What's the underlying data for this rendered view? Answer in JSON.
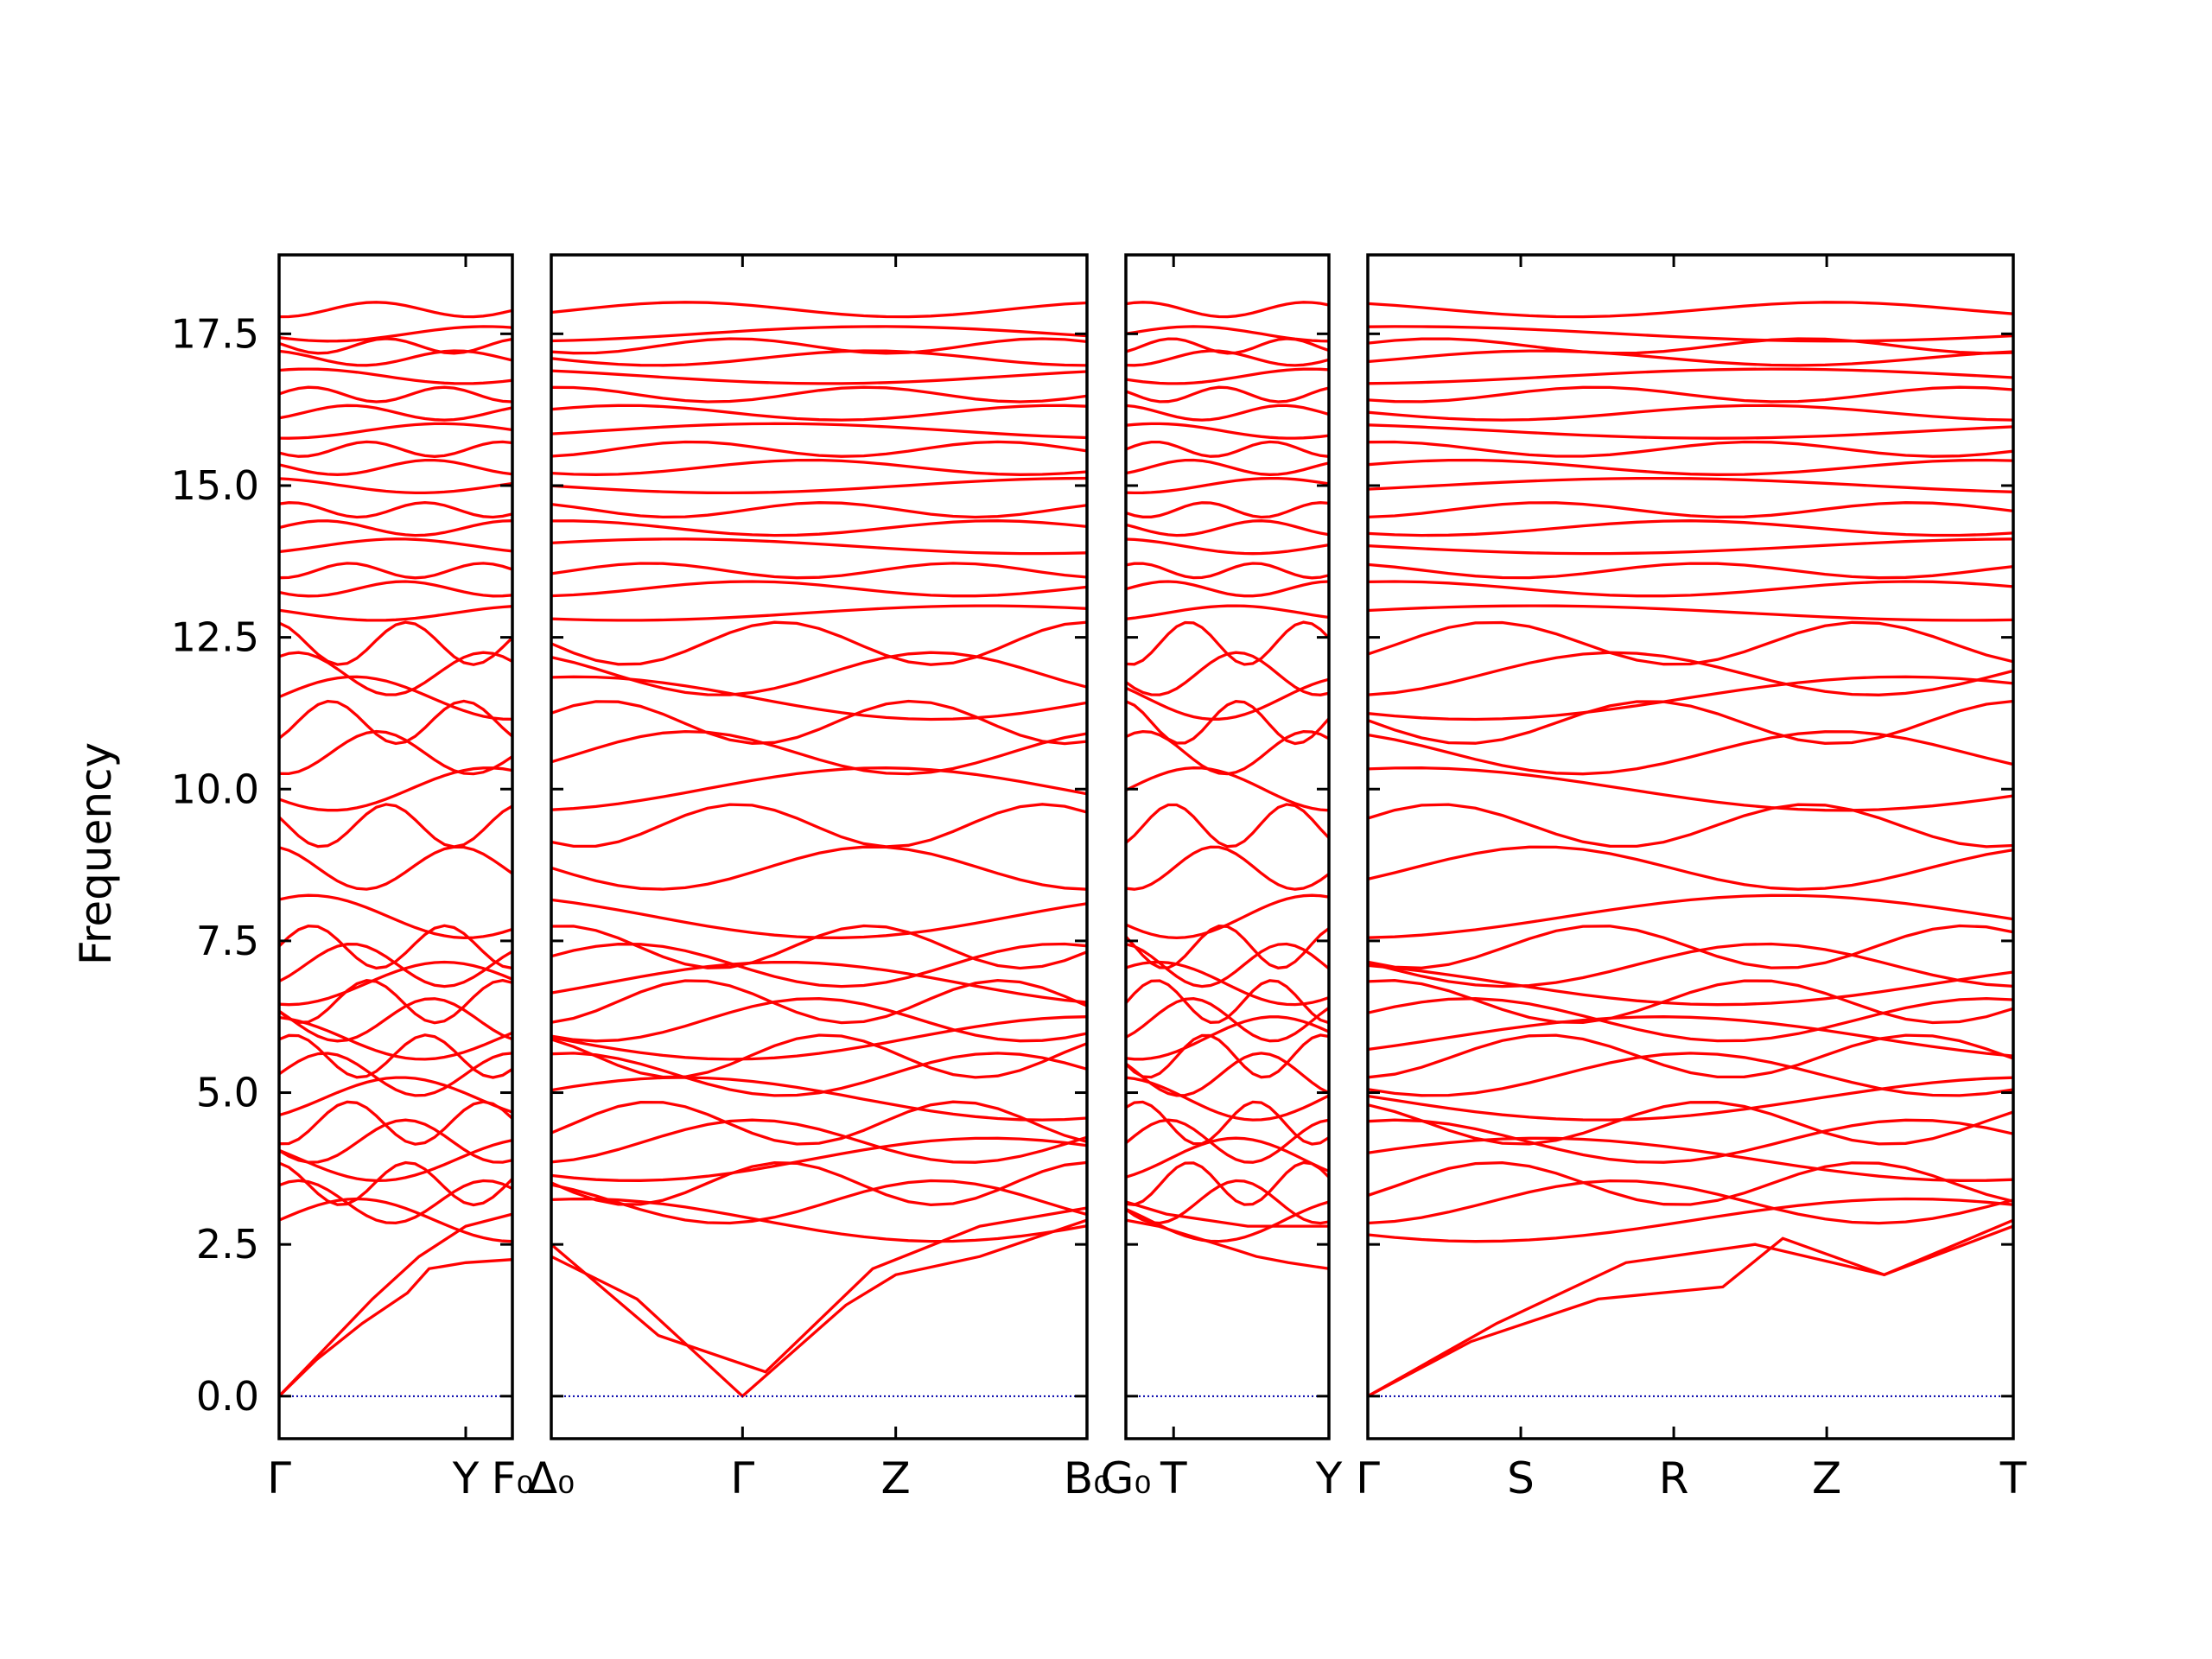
{
  "chart_data": {
    "type": "line",
    "title": "",
    "xlabel": "",
    "ylabel": "Frequency",
    "ylim": [
      -0.7,
      18.8
    ],
    "yticks": [
      0.0,
      2.5,
      5.0,
      7.5,
      10.0,
      12.5,
      15.0,
      17.5
    ],
    "ytick_labels": [
      "0.0",
      "2.5",
      "5.0",
      "7.5",
      "10.0",
      "12.5",
      "15.0",
      "17.5"
    ],
    "grid": false,
    "legend": "none",
    "line_color": "#ff0000",
    "zero_line_color": "#0000aa",
    "frame_color": "#000000",
    "panels": [
      {
        "ticks": [
          {
            "pos": 0.0,
            "label": "Γ"
          },
          {
            "pos": 0.8,
            "label": "Y"
          },
          {
            "pos": 1.0,
            "label": "F₀"
          }
        ]
      },
      {
        "ticks": [
          {
            "pos": 0.0,
            "label": "Δ₀"
          },
          {
            "pos": 0.357,
            "label": "Γ"
          },
          {
            "pos": 0.643,
            "label": "Z"
          },
          {
            "pos": 1.0,
            "label": "B₀"
          }
        ]
      },
      {
        "ticks": [
          {
            "pos": 0.0,
            "label": "G₀"
          },
          {
            "pos": 0.235,
            "label": "T"
          },
          {
            "pos": 1.0,
            "label": "Y"
          }
        ]
      },
      {
        "ticks": [
          {
            "pos": 0.0,
            "label": "Γ"
          },
          {
            "pos": 0.237,
            "label": "S"
          },
          {
            "pos": 0.474,
            "label": "R"
          },
          {
            "pos": 0.711,
            "label": "Z"
          },
          {
            "pos": 1.0,
            "label": "T"
          }
        ]
      }
    ],
    "series": [
      {
        "name": "",
        "x": [
          0.0,
          0.16,
          0.357,
          0.55,
          0.643,
          0.8,
          1.0
        ],
        "y_by_panel": [
          [
            0.0,
            0.6,
            1.2,
            1.7,
            2.1,
            2.2,
            2.25
          ],
          [
            2.3,
            1.6,
            0.0,
            1.5,
            2.0,
            2.3,
            2.9
          ],
          [
            2.9,
            2.8,
            2.6,
            2.4,
            2.3,
            2.2,
            2.1
          ],
          [
            0.0,
            0.9,
            1.6,
            1.8,
            2.6,
            2.0,
            2.9
          ]
        ]
      },
      {
        "name": "",
        "x": [
          0.0,
          0.2,
          0.4,
          0.6,
          0.8,
          1.0
        ],
        "y_by_panel": [
          [
            0.0,
            0.8,
            1.6,
            2.3,
            2.8,
            3.0
          ],
          [
            2.5,
            1.0,
            0.4,
            2.1,
            2.8,
            3.1
          ],
          [
            3.2,
            3.0,
            2.9,
            2.8,
            2.8,
            2.8
          ],
          [
            0.0,
            1.2,
            2.2,
            2.5,
            2.0,
            2.8
          ]
        ]
      }
    ],
    "flat_bands_approx": [
      2.9,
      3.2,
      3.5,
      3.9,
      4.2,
      4.5,
      4.9,
      5.3,
      5.6,
      5.9,
      6.2,
      6.5,
      6.8,
      7.1,
      7.4,
      7.9,
      8.7,
      9.4,
      10.0,
      10.6,
      11.1,
      11.5,
      11.9,
      12.4,
      12.9,
      13.3,
      13.6,
      14.0,
      14.3,
      14.6,
      15.0,
      15.3,
      15.6,
      15.9,
      16.2,
      16.5,
      16.8,
      17.1,
      17.3,
      17.5,
      17.9
    ]
  }
}
